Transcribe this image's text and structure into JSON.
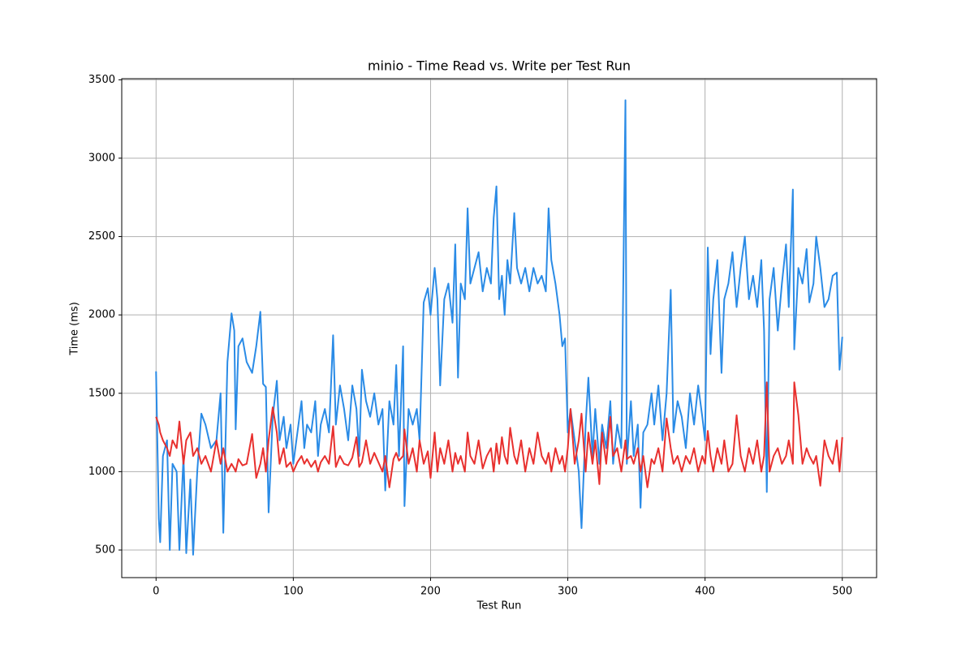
{
  "chart_data": {
    "type": "line",
    "title": "minio - Time Read vs. Write per Test Run",
    "x_label": "Test Run",
    "y_label": "Time (ms)",
    "x": [
      0,
      2,
      3,
      5,
      8,
      10,
      12,
      15,
      17,
      20,
      22,
      25,
      27,
      30,
      33,
      36,
      40,
      44,
      47,
      49,
      52,
      55,
      57,
      58,
      60,
      63,
      66,
      70,
      73,
      76,
      78,
      80,
      82,
      85,
      88,
      90,
      93,
      95,
      98,
      100,
      103,
      106,
      108,
      110,
      113,
      116,
      118,
      120,
      123,
      126,
      129,
      131,
      134,
      137,
      140,
      143,
      146,
      148,
      150,
      153,
      156,
      159,
      162,
      165,
      167,
      170,
      173,
      175,
      177,
      180,
      181,
      184,
      187,
      190,
      192,
      195,
      198,
      200,
      203,
      205,
      207,
      210,
      213,
      216,
      218,
      220,
      222,
      225,
      227,
      229,
      232,
      235,
      238,
      241,
      244,
      246,
      248,
      250,
      252,
      254,
      256,
      258,
      261,
      263,
      266,
      269,
      272,
      275,
      278,
      281,
      284,
      286,
      288,
      291,
      294,
      296,
      298,
      300,
      302,
      305,
      308,
      310,
      313,
      315,
      318,
      320,
      323,
      325,
      328,
      331,
      333,
      336,
      339,
      342,
      343,
      346,
      348,
      351,
      353,
      355,
      358,
      361,
      363,
      366,
      369,
      372,
      375,
      377,
      380,
      383,
      386,
      389,
      392,
      395,
      398,
      400,
      402,
      404,
      406,
      409,
      412,
      414,
      417,
      420,
      423,
      426,
      429,
      432,
      435,
      438,
      441,
      443,
      445,
      447,
      450,
      453,
      456,
      459,
      461,
      464,
      465,
      468,
      471,
      474,
      476,
      479,
      481,
      484,
      487,
      490,
      493,
      496,
      498,
      500
    ],
    "series": [
      {
        "color": "#2a8be6",
        "values": [
          1640,
          700,
          550,
          1100,
          1200,
          500,
          1050,
          1000,
          500,
          1100,
          480,
          950,
          470,
          1000,
          1370,
          1300,
          1150,
          1200,
          1500,
          610,
          1700,
          2010,
          1900,
          1270,
          1800,
          1850,
          1700,
          1630,
          1800,
          2020,
          1560,
          1540,
          740,
          1350,
          1580,
          1200,
          1350,
          1150,
          1300,
          1050,
          1250,
          1450,
          1150,
          1300,
          1250,
          1450,
          1100,
          1300,
          1400,
          1250,
          1870,
          1300,
          1550,
          1400,
          1200,
          1550,
          1400,
          1100,
          1650,
          1450,
          1350,
          1500,
          1300,
          1400,
          880,
          1450,
          1300,
          1680,
          1100,
          1800,
          780,
          1400,
          1300,
          1400,
          1200,
          2080,
          2170,
          2000,
          2300,
          2100,
          1550,
          2100,
          2200,
          1950,
          2450,
          1600,
          2200,
          2100,
          2680,
          2200,
          2300,
          2400,
          2150,
          2300,
          2200,
          2620,
          2820,
          2100,
          2250,
          2000,
          2350,
          2200,
          2650,
          2300,
          2200,
          2300,
          2150,
          2300,
          2200,
          2250,
          2150,
          2680,
          2350,
          2200,
          2000,
          1800,
          1850,
          1250,
          1400,
          1200,
          1000,
          640,
          1300,
          1600,
          1100,
          1400,
          1050,
          1300,
          1150,
          1450,
          1050,
          1300,
          1150,
          3370,
          1050,
          1450,
          1100,
          1300,
          770,
          1250,
          1300,
          1500,
          1300,
          1550,
          1200,
          1500,
          2160,
          1250,
          1450,
          1350,
          1150,
          1500,
          1300,
          1550,
          1350,
          1200,
          2430,
          1750,
          2100,
          2350,
          1630,
          2100,
          2200,
          2400,
          2050,
          2300,
          2500,
          2100,
          2250,
          2050,
          2350,
          1900,
          870,
          2100,
          2300,
          1900,
          2200,
          2450,
          2050,
          2800,
          1780,
          2300,
          2200,
          2420,
          2080,
          2200,
          2500,
          2300,
          2050,
          2100,
          2250,
          2270,
          1650,
          1860
        ]
      },
      {
        "color": "#e8302e",
        "values": [
          1350,
          1300,
          1250,
          1200,
          1150,
          1100,
          1200,
          1150,
          1320,
          1050,
          1200,
          1250,
          1100,
          1150,
          1050,
          1100,
          1000,
          1200,
          1050,
          1150,
          1000,
          1050,
          1020,
          1000,
          1080,
          1040,
          1050,
          1240,
          960,
          1050,
          1150,
          1000,
          1200,
          1410,
          1250,
          1050,
          1150,
          1030,
          1060,
          1000,
          1060,
          1100,
          1050,
          1080,
          1030,
          1070,
          1000,
          1060,
          1100,
          1050,
          1290,
          1030,
          1100,
          1050,
          1040,
          1090,
          1220,
          1030,
          1060,
          1200,
          1050,
          1120,
          1060,
          1000,
          1100,
          900,
          1080,
          1120,
          1070,
          1100,
          1270,
          1050,
          1150,
          1000,
          1200,
          1050,
          1130,
          960,
          1250,
          1000,
          1150,
          1050,
          1200,
          1000,
          1120,
          1050,
          1100,
          1000,
          1250,
          1100,
          1050,
          1200,
          1020,
          1100,
          1150,
          1000,
          1180,
          1050,
          1220,
          1100,
          1050,
          1280,
          1100,
          1050,
          1200,
          1000,
          1150,
          1050,
          1250,
          1100,
          1050,
          1120,
          1000,
          1150,
          1050,
          1100,
          1000,
          1150,
          1400,
          1050,
          1200,
          1370,
          1000,
          1250,
          1050,
          1200,
          920,
          1250,
          1050,
          1350,
          1100,
          1150,
          1000,
          1200,
          1080,
          1100,
          1050,
          1150,
          1000,
          1100,
          900,
          1080,
          1050,
          1150,
          1000,
          1340,
          1150,
          1050,
          1100,
          1000,
          1100,
          1050,
          1150,
          1000,
          1100,
          1050,
          1260,
          1100,
          1000,
          1150,
          1050,
          1200,
          1000,
          1050,
          1360,
          1100,
          1000,
          1150,
          1050,
          1200,
          1000,
          1100,
          1570,
          1000,
          1100,
          1150,
          1050,
          1100,
          1200,
          1050,
          1570,
          1360,
          1050,
          1150,
          1100,
          1050,
          1100,
          910,
          1200,
          1100,
          1050,
          1200,
          1000,
          1220
        ]
      }
    ],
    "xlim": [
      -25,
      525
    ],
    "ylim": [
      324,
      3507
    ],
    "xticks": [
      0,
      100,
      200,
      300,
      400,
      500
    ],
    "yticks": [
      500,
      1000,
      1500,
      2000,
      2500,
      3000,
      3500
    ],
    "grid": true
  }
}
